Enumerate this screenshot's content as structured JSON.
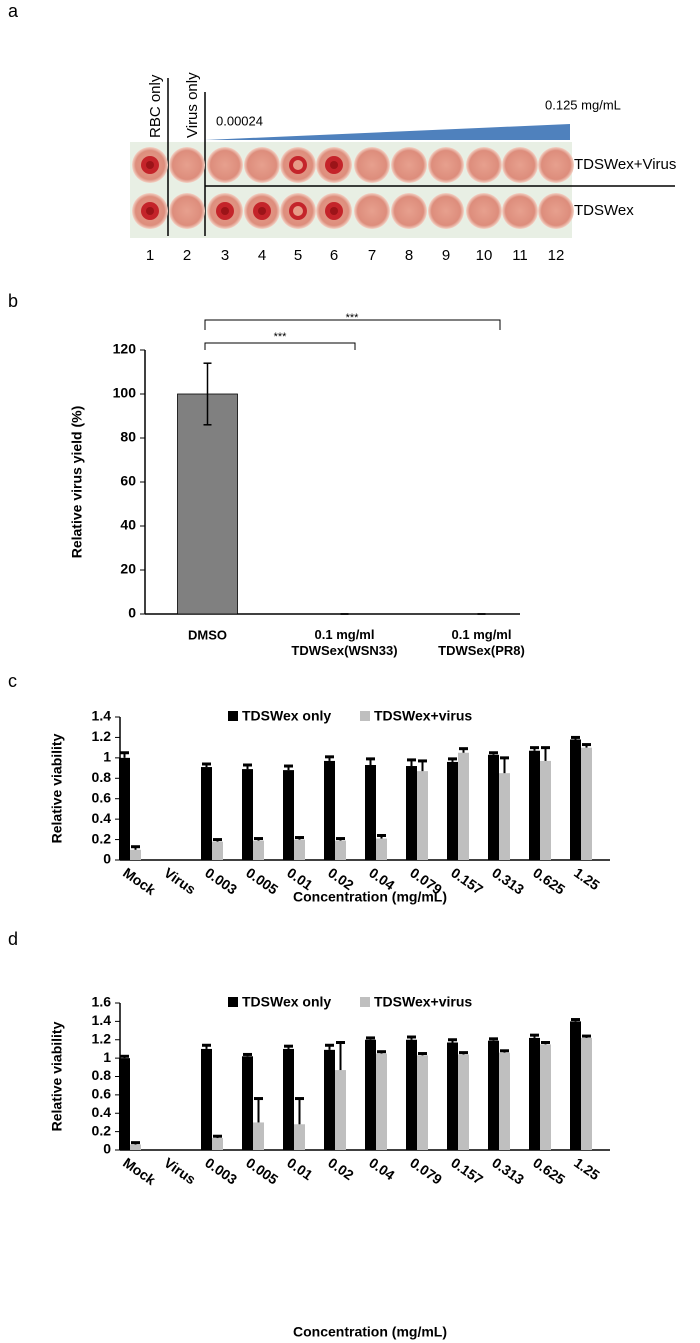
{
  "panels": [
    "a",
    "b",
    "c",
    "d"
  ],
  "panel_a": {
    "column_labels": [
      "RBC only",
      "Virus only"
    ],
    "gradient_start": "0.00024",
    "gradient_end": "0.125 mg/mL",
    "row_labels": [
      "TDSWex+Virus",
      "TDSWex"
    ],
    "well_numbers": [
      1,
      2,
      3,
      4,
      5,
      6,
      7,
      8,
      9,
      10,
      11,
      12
    ]
  },
  "chart_data": [
    {
      "type": "bar",
      "ylabel": "Relative virus yield (%)",
      "categories": [
        "DMSO",
        "0.1  mg/ml\nTDWSex(WSN33)",
        "0.1  mg/ml\nTDWSex(PR8)"
      ],
      "values": [
        100,
        0,
        0
      ],
      "errors": [
        14,
        0,
        0
      ],
      "color": "#808080",
      "ylim": [
        0,
        120
      ],
      "yticks": [
        0,
        20,
        40,
        60,
        80,
        100,
        120
      ],
      "annotations": [
        "***",
        "***"
      ]
    },
    {
      "type": "grouped_bar",
      "ylabel": "Relative viability",
      "xlabel": "Concentration (mg/mL)",
      "categories": [
        "Mock",
        "Virus",
        "0.003",
        "0.005",
        "0.01",
        "0.02",
        "0.04",
        "0.079",
        "0.157",
        "0.313",
        "0.625",
        "1.25"
      ],
      "series": [
        {
          "name": "TDSWex only",
          "color": "#000000",
          "values": [
            1.0,
            null,
            0.91,
            0.89,
            0.88,
            0.97,
            0.93,
            0.92,
            0.96,
            1.03,
            1.07,
            1.18
          ],
          "errors": [
            0.05,
            null,
            0.03,
            0.04,
            0.04,
            0.04,
            0.06,
            0.06,
            0.03,
            0.02,
            0.03,
            0.02
          ]
        },
        {
          "name": "TDSWex+virus",
          "color": "#bfbfbf",
          "values": [
            0.1,
            null,
            0.18,
            0.19,
            0.2,
            0.19,
            0.21,
            0.87,
            1.05,
            0.85,
            0.97,
            1.1
          ],
          "errors": [
            0.03,
            null,
            0.02,
            0.02,
            0.02,
            0.02,
            0.03,
            0.1,
            0.04,
            0.15,
            0.13,
            0.03
          ]
        }
      ],
      "ylim": [
        0,
        1.4
      ],
      "yticks": [
        0,
        0.2,
        0.4,
        0.6,
        0.8,
        1,
        1.2,
        1.4
      ],
      "legend": "top"
    },
    {
      "type": "grouped_bar",
      "ylabel": "Relative viability",
      "xlabel": "Concentration (mg/mL)",
      "categories": [
        "Mock",
        "Virus",
        "0.003",
        "0.005",
        "0.01",
        "0.02",
        "0.04",
        "0.079",
        "0.157",
        "0.313",
        "0.625",
        "1.25"
      ],
      "series": [
        {
          "name": "TDSWex only",
          "color": "#000000",
          "values": [
            1.0,
            null,
            1.1,
            1.02,
            1.1,
            1.09,
            1.2,
            1.2,
            1.17,
            1.19,
            1.22,
            1.4
          ],
          "errors": [
            0.02,
            null,
            0.04,
            0.02,
            0.03,
            0.05,
            0.02,
            0.03,
            0.03,
            0.02,
            0.03,
            0.02
          ]
        },
        {
          "name": "TDSWex+virus",
          "color": "#bfbfbf",
          "values": [
            0.06,
            null,
            0.13,
            0.3,
            0.28,
            0.87,
            1.05,
            1.03,
            1.04,
            1.06,
            1.15,
            1.22
          ],
          "errors": [
            0.02,
            null,
            0.02,
            0.26,
            0.28,
            0.3,
            0.02,
            0.02,
            0.02,
            0.02,
            0.02,
            0.02
          ]
        }
      ],
      "ylim": [
        0,
        1.6
      ],
      "yticks": [
        0,
        0.2,
        0.4,
        0.6,
        0.8,
        1,
        1.2,
        1.4,
        1.6
      ],
      "legend": "top"
    }
  ]
}
